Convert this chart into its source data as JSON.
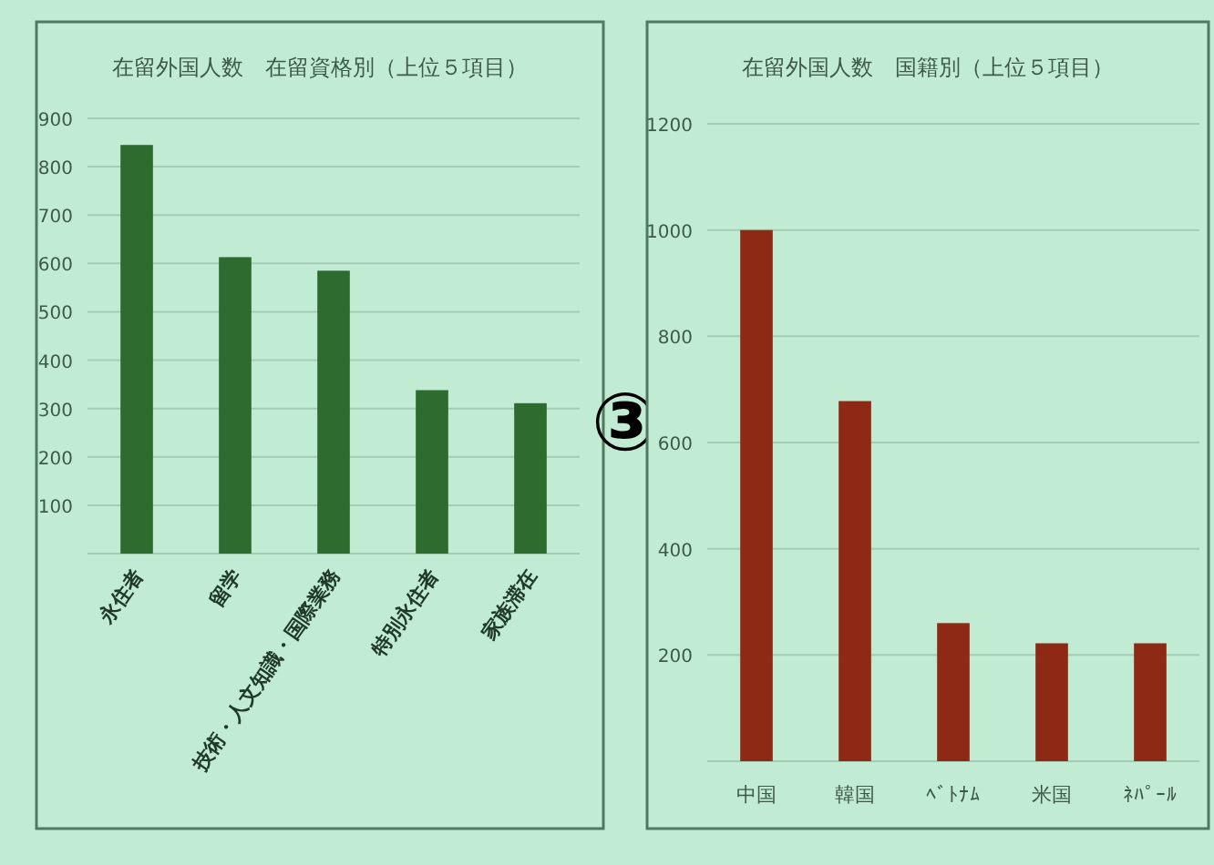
{
  "chart_data": [
    {
      "type": "bar",
      "title": "在留外国人数　在留資格別（上位５項目）",
      "categories": [
        "永住者",
        "留学",
        "技術・人文知識・国際業務",
        "特別永住者",
        "家族滞在"
      ],
      "values": [
        845,
        613,
        585,
        338,
        311
      ],
      "color": "#2e6b2e",
      "ylim": [
        0,
        900
      ],
      "yticks": [
        {
          "value": 0,
          "label": null
        },
        100,
        200,
        300,
        400,
        500,
        600,
        700,
        800,
        900
      ],
      "grid": "y",
      "annotations": [
        "③"
      ]
    },
    {
      "type": "bar",
      "title": "在留外国人数　国籍別（上位５項目）",
      "categories": [
        "中国",
        "韓国",
        "ﾍﾞﾄﾅﾑ",
        "米国",
        "ﾈﾊﾟｰﾙ"
      ],
      "values": [
        1000,
        678,
        260,
        222,
        222
      ],
      "color": "#8e2915",
      "ylim": [
        0,
        1200
      ],
      "yticks": [
        {
          "value": 0,
          "label": null
        },
        200,
        400,
        600,
        800,
        1000,
        1200
      ],
      "grid": "y"
    }
  ]
}
